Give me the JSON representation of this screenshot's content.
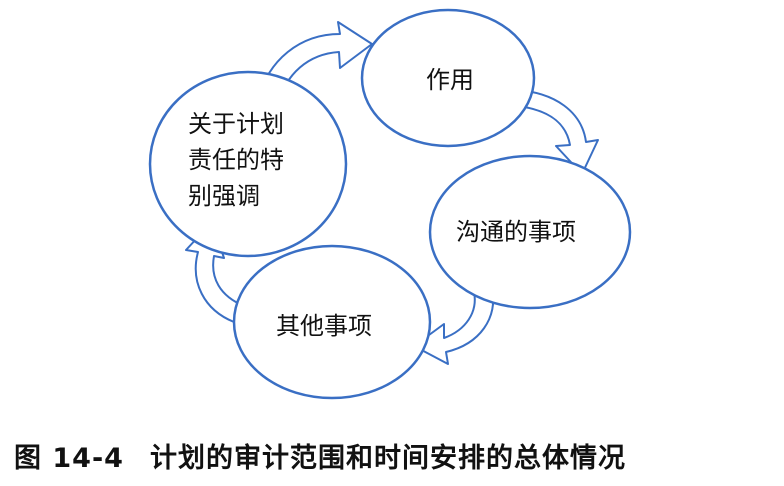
{
  "diagram": {
    "nodes": [
      {
        "id": "role",
        "lines": [
          "作用"
        ]
      },
      {
        "id": "communication",
        "lines": [
          "沟通的事项"
        ]
      },
      {
        "id": "other",
        "lines": [
          "其他事项"
        ]
      },
      {
        "id": "responsibility",
        "lines": [
          "关于计划",
          "责任的特",
          "别强调"
        ]
      }
    ],
    "colors": {
      "outline": "#3a6fc4",
      "text": "#111111"
    }
  },
  "caption": {
    "number": "图 14-4",
    "title": "计划的审计范围和时间安排的总体情况"
  }
}
